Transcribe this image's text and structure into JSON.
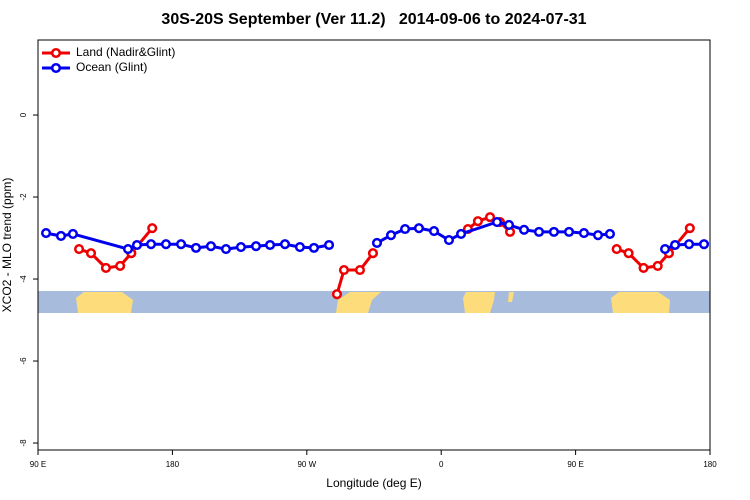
{
  "chart_data": {
    "type": "line",
    "title": "30S-20S September (Ver 11.2)   2014-09-06 to 2024-07-31",
    "x_label": "Longitude (deg E)",
    "y_label": "XCO2 - MLO trend (ppm)",
    "xlim": [
      90,
      540
    ],
    "ylim": [
      -8.17,
      1.83
    ],
    "xticks": [
      {
        "value": 90,
        "label": "90 E"
      },
      {
        "value": 180,
        "label": "180"
      },
      {
        "value": 270,
        "label": "90 W"
      },
      {
        "value": 360,
        "label": "0"
      },
      {
        "value": 450,
        "label": "90 E"
      },
      {
        "value": 540,
        "label": "180"
      }
    ],
    "yticks": [
      0,
      -2,
      -4,
      -6,
      -8
    ],
    "legend": "top-left",
    "series": [
      {
        "name": "Land (Nadir&Glint)",
        "color": "#ee0000",
        "x": [
          117.5,
          125.5,
          135.5,
          145,
          152.5,
          166.5,
          null,
          290.2,
          294.9,
          305.6,
          314.3,
          null,
          377.9,
          384.6,
          392.7,
          399.4,
          406.1,
          null,
          477.5,
          485.5,
          495.5,
          505,
          512.5,
          526.5
        ],
        "values": [
          -3.27,
          -3.37,
          -3.73,
          -3.68,
          -3.37,
          -2.76,
          null,
          -4.37,
          -3.78,
          -3.78,
          -3.37,
          null,
          -2.78,
          -2.59,
          -2.49,
          -2.61,
          -2.85,
          null,
          -3.27,
          -3.37,
          -3.73,
          -3.68,
          -3.37,
          -2.76
        ]
      },
      {
        "name": "Ocean (Glint)",
        "color": "#0000ee",
        "x": [
          95.4,
          105.4,
          113.4,
          150.3,
          156.3,
          165.7,
          175.7,
          185.8,
          195.8,
          205.8,
          215.9,
          225.9,
          236,
          245.4,
          255.4,
          265.4,
          274.8,
          284.9,
          null,
          317,
          326.4,
          335.8,
          345.1,
          355.2,
          365.2,
          373.3,
          397.4,
          405.4,
          415.5,
          425.5,
          435.5,
          445.6,
          455.6,
          465,
          473,
          null,
          509.9,
          516.6,
          526,
          536
        ],
        "values": [
          -2.88,
          -2.95,
          -2.9,
          -3.27,
          -3.17,
          -3.15,
          -3.15,
          -3.15,
          -3.24,
          -3.2,
          -3.27,
          -3.22,
          -3.2,
          -3.17,
          -3.15,
          -3.22,
          -3.24,
          -3.17,
          null,
          -3.12,
          -2.93,
          -2.78,
          -2.76,
          -2.83,
          -3.05,
          -2.9,
          -2.61,
          -2.68,
          -2.8,
          -2.85,
          -2.85,
          -2.85,
          -2.88,
          -2.93,
          -2.9,
          null,
          -3.27,
          -3.17,
          -3.15,
          -3.15
        ]
      }
    ]
  }
}
